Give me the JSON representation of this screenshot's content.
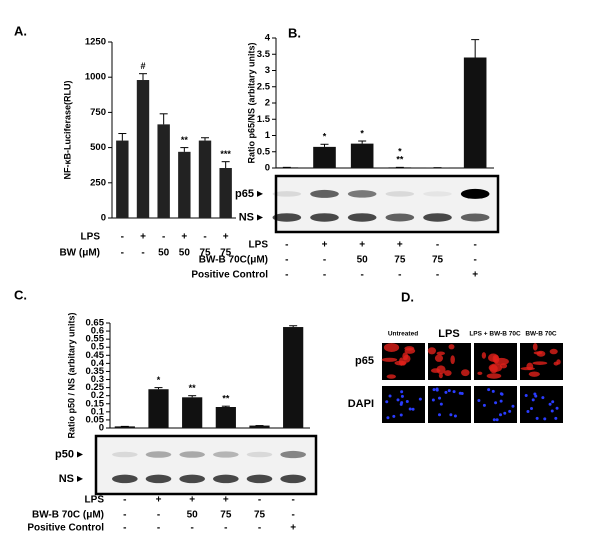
{
  "chart_data": [
    {
      "type": "bar",
      "panel": "A.",
      "ylabel": "NF-κB-Luciferase(RLU)",
      "color": "#222222",
      "ylim": [
        0,
        1250
      ],
      "yticks": [
        0,
        250,
        500,
        750,
        1000,
        1250
      ],
      "values": [
        550,
        980,
        665,
        470,
        550,
        355
      ],
      "errors": [
        50,
        45,
        75,
        30,
        20,
        45
      ],
      "annotations": [
        null,
        [
          "#"
        ],
        null,
        [
          "**"
        ],
        null,
        [
          "***"
        ]
      ],
      "condition_rows": [
        {
          "label": "LPS",
          "values": [
            "-",
            "+",
            "-",
            "+",
            "-",
            "+"
          ]
        },
        {
          "label": "BW (μM)",
          "values": [
            "-",
            "-",
            "50",
            "50",
            "75",
            "75"
          ]
        }
      ]
    },
    {
      "type": "bar",
      "panel": "B.",
      "ylabel": "Ratio p65/NS (arbitary units)",
      "color": "#111111",
      "ylim": [
        0,
        4
      ],
      "yticks": [
        0,
        0.5,
        1,
        1.5,
        2,
        2.5,
        3,
        3.5,
        4
      ],
      "values": [
        0.02,
        0.65,
        0.75,
        0.02,
        0.01,
        3.4
      ],
      "errors": [
        0,
        0.08,
        0.08,
        0,
        0,
        0.55
      ],
      "annotations": [
        null,
        [
          "*"
        ],
        [
          "*"
        ],
        [
          "*",
          "**"
        ],
        null,
        null
      ],
      "blot_labels": [
        "p65",
        "NS"
      ],
      "condition_rows": [
        {
          "label": "LPS",
          "values": [
            "-",
            "+",
            "+",
            "+",
            "-",
            "-"
          ]
        },
        {
          "label": "BW-B 70C(μM)",
          "values": [
            "-",
            "-",
            "50",
            "75",
            "75",
            "-"
          ]
        },
        {
          "label": "Positive Control",
          "values": [
            "-",
            "-",
            "-",
            "-",
            "-",
            "+"
          ]
        }
      ]
    },
    {
      "type": "bar",
      "panel": "C.",
      "ylabel": "Ratio p50 / NS (arbitary units)",
      "color": "#111111",
      "ylim": [
        0,
        0.65
      ],
      "yticks": [
        0,
        0.05,
        0.1,
        0.15,
        0.2,
        0.25,
        0.3,
        0.35,
        0.4,
        0.45,
        0.5,
        0.55,
        0.6,
        0.65
      ],
      "values": [
        0.01,
        0.24,
        0.19,
        0.13,
        0.015,
        0.625
      ],
      "errors": [
        0,
        0.01,
        0.01,
        0.005,
        0,
        0.008
      ],
      "annotations": [
        null,
        [
          "*"
        ],
        [
          "**"
        ],
        [
          "**"
        ],
        null,
        null
      ],
      "blot_labels": [
        "p50",
        "NS"
      ],
      "condition_rows": [
        {
          "label": "LPS",
          "values": [
            "-",
            "+",
            "+",
            "+",
            "-",
            "-"
          ]
        },
        {
          "label": "BW-B 70C (μM)",
          "values": [
            "-",
            "-",
            "50",
            "75",
            "75",
            "-"
          ]
        },
        {
          "label": "Positive Control",
          "values": [
            "-",
            "-",
            "-",
            "-",
            "-",
            "+"
          ]
        }
      ]
    }
  ],
  "panel_d": {
    "panel": "D.",
    "columns": [
      "Untreated",
      "LPS",
      "LPS + BW-B 70C",
      "BW-B 70C"
    ],
    "rows": [
      "p65",
      "DAPI"
    ]
  }
}
